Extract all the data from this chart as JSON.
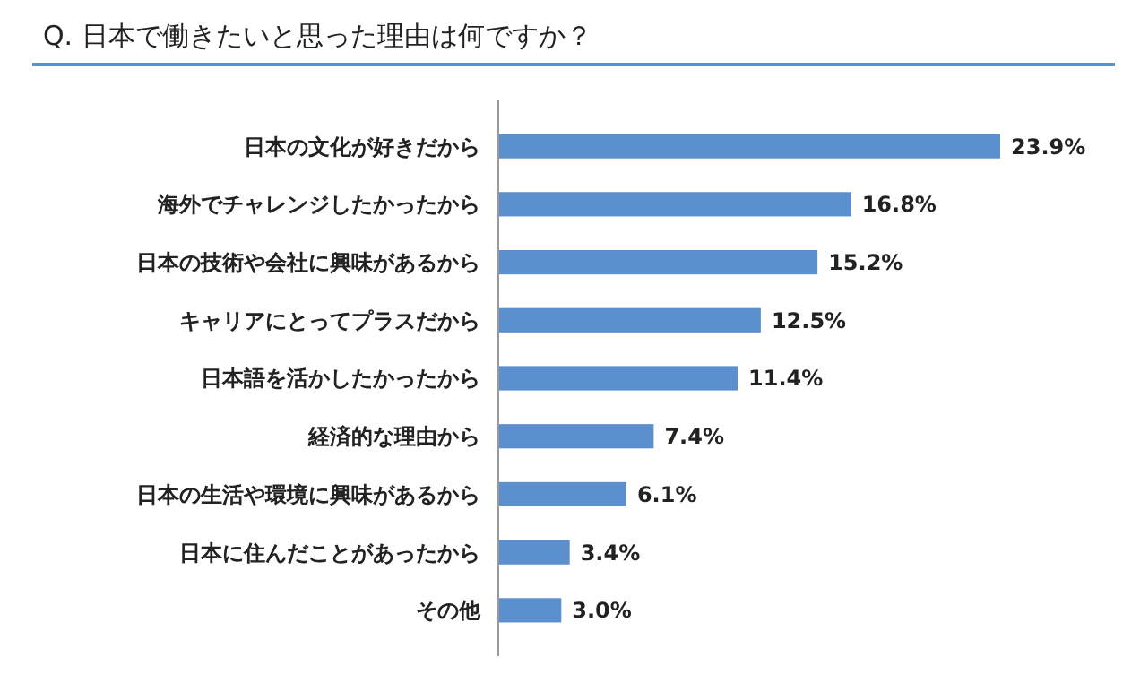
{
  "chart_data": {
    "type": "bar",
    "orientation": "horizontal",
    "title": "Q. 日本で働きたいと思った理由は何ですか？",
    "categories": [
      "日本の文化が好きだから",
      "海外でチャレンジしたかったから",
      "日本の技術や会社に興味があるから",
      "キャリアにとってプラスだから",
      "日本語を活かしたかったから",
      "経済的な理由から",
      "日本の生活や環境に興味があるから",
      "日本に住んだことがあったから",
      "その他"
    ],
    "values": [
      23.9,
      16.8,
      15.2,
      12.5,
      11.4,
      7.4,
      6.1,
      3.4,
      3.0
    ],
    "value_labels": [
      "23.9%",
      "16.8%",
      "15.2%",
      "12.5%",
      "11.4%",
      "7.4%",
      "6.1%",
      "3.4%",
      "3.0%"
    ],
    "color": "#5b8fce"
  }
}
